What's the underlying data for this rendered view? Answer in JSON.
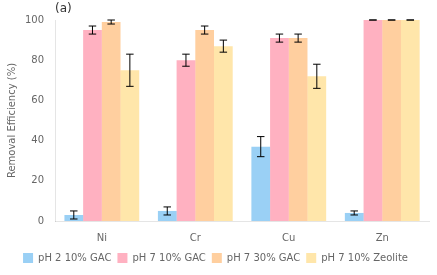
{
  "chart_data": {
    "type": "bar",
    "categories": [
      "Ni",
      "Cr",
      "Cu",
      "Zn"
    ],
    "series": [
      {
        "name": "pH 2 10% GAC",
        "values": [
          3,
          5,
          37,
          4
        ],
        "errors": [
          2,
          2,
          5,
          1
        ]
      },
      {
        "name": "pH 7 10% GAC",
        "values": [
          95,
          80,
          91,
          100
        ],
        "errors": [
          2,
          3,
          2,
          0
        ]
      },
      {
        "name": "pH 7 30% GAC",
        "values": [
          99,
          95,
          91,
          100
        ],
        "errors": [
          1,
          2,
          2,
          0
        ]
      },
      {
        "name": "pH 7 10% Zeolite",
        "values": [
          75,
          87,
          72,
          100
        ],
        "errors": [
          8,
          3,
          6,
          0
        ]
      }
    ],
    "ylabel": "Removal Efficiency (%)",
    "annotation": "(a)",
    "ylim": [
      0,
      100
    ],
    "yticks": [
      0,
      20,
      40,
      60,
      80,
      100
    ],
    "grid": false,
    "legend": "bottom"
  }
}
